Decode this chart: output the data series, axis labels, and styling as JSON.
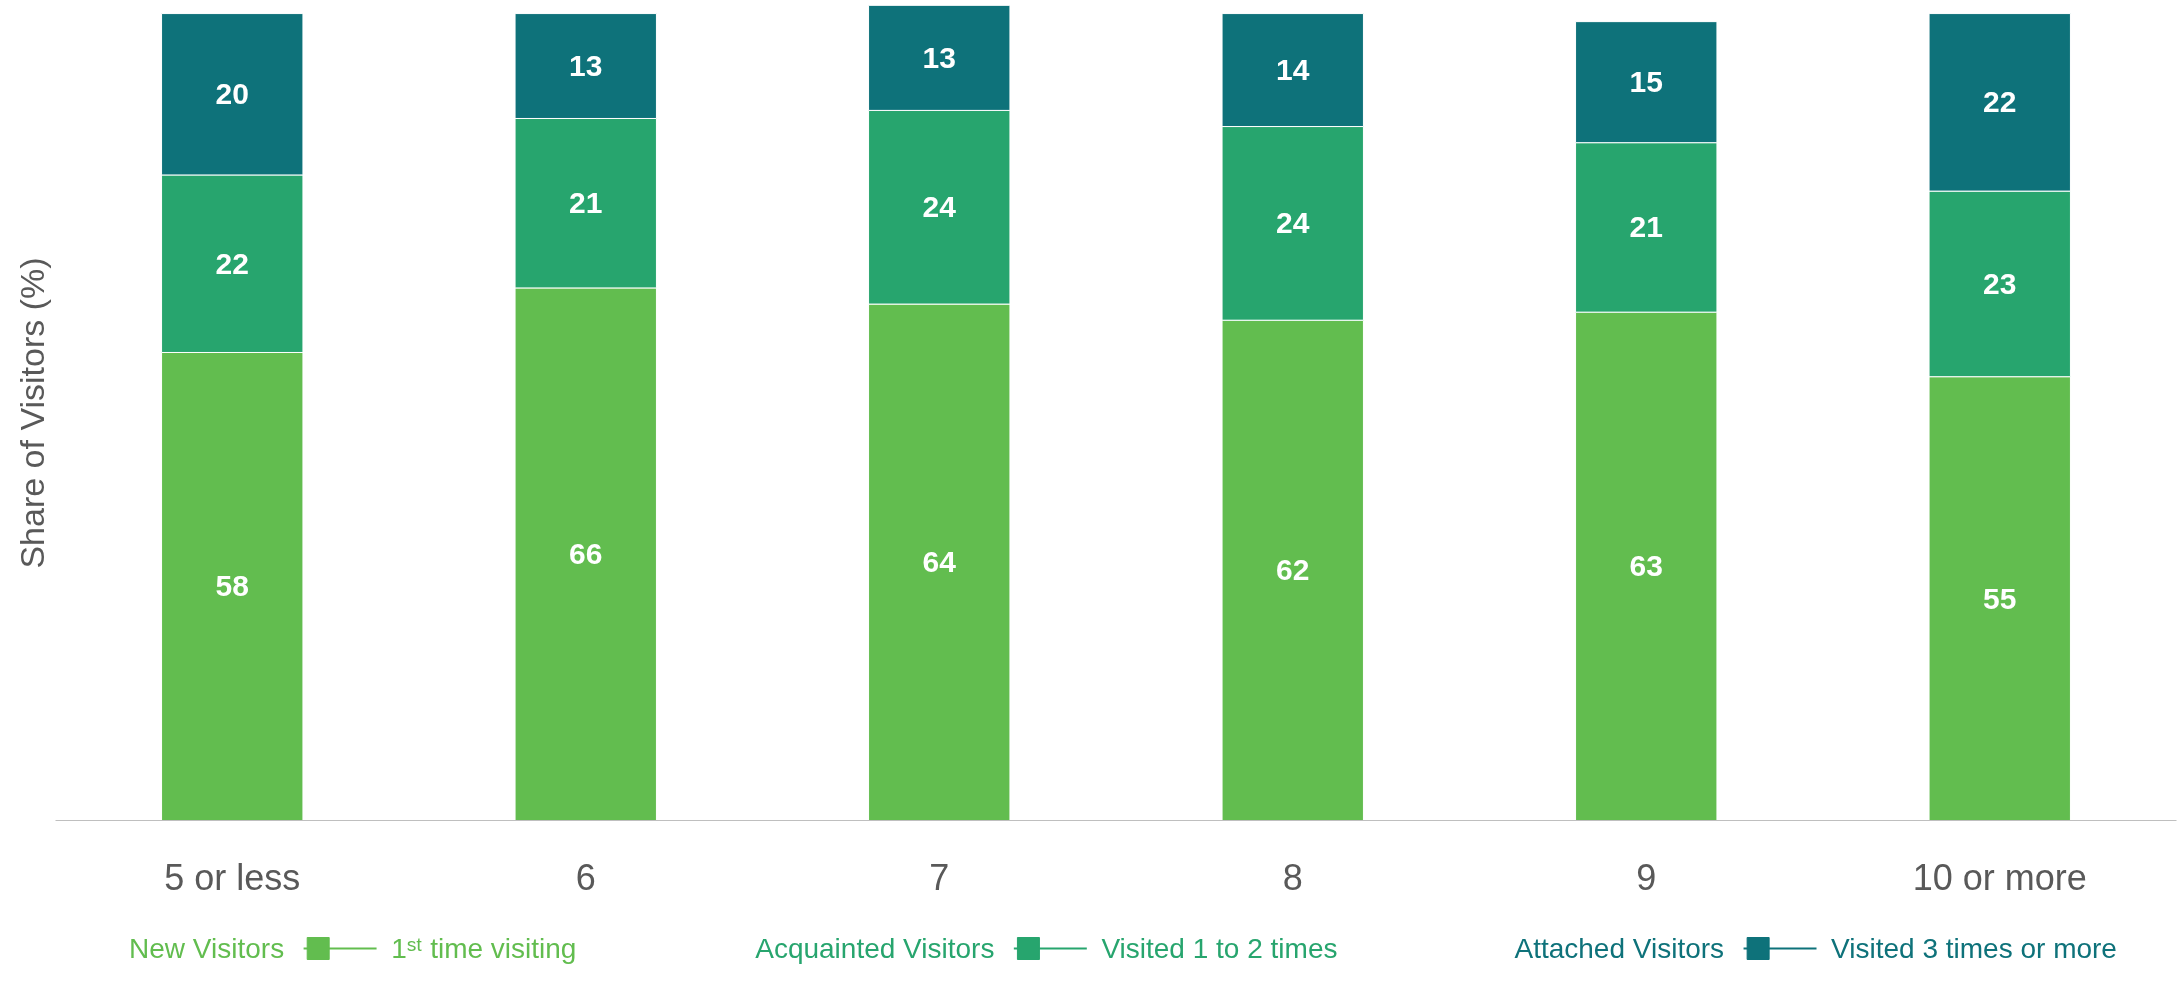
{
  "chart_data": {
    "type": "bar",
    "stacked": true,
    "ylabel": "Share of Visitors (%)",
    "categories": [
      "5 or less",
      "6",
      "7",
      "8",
      "9",
      "10 or more"
    ],
    "ylim": [
      0,
      101
    ],
    "data_labels": true,
    "grid": false,
    "legend": "bottom",
    "series": [
      {
        "name": "New Visitors",
        "color": "#62bd4f",
        "values": [
          58,
          66,
          64,
          62,
          63,
          55
        ]
      },
      {
        "name": "Acquainted Visitors",
        "color": "#27a56e",
        "values": [
          22,
          21,
          24,
          24,
          21,
          23
        ]
      },
      {
        "name": "Attached Visitors",
        "color": "#0e727a",
        "values": [
          20,
          13,
          13,
          14,
          15,
          22
        ]
      }
    ],
    "annotations": [
      "1ˢᵗ time visiting",
      "Visited 1 to 2 times",
      "Visited 3 times or more"
    ]
  }
}
